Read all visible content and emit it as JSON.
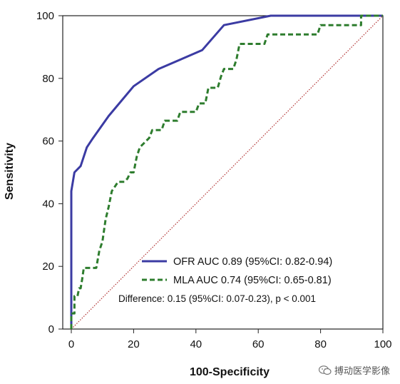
{
  "chart_data": {
    "type": "line",
    "xlabel": "100-Specificity",
    "ylabel": "Sensitivity",
    "xlim": [
      0,
      100
    ],
    "ylim": [
      0,
      100
    ],
    "xticks": [
      0,
      20,
      40,
      60,
      80,
      100
    ],
    "yticks": [
      0,
      20,
      40,
      60,
      80,
      100
    ],
    "grid": false,
    "legend_placement": "bottom-right",
    "series": [
      {
        "name": "OFR AUC 0.89 (95%CI: 0.82-0.94)",
        "color": "#3b3ba3",
        "style": "solid",
        "points": [
          [
            0,
            0
          ],
          [
            0,
            44
          ],
          [
            1,
            50
          ],
          [
            3,
            52
          ],
          [
            5,
            58
          ],
          [
            7,
            61
          ],
          [
            12,
            68
          ],
          [
            20,
            77.5
          ],
          [
            28,
            83
          ],
          [
            35,
            86
          ],
          [
            42,
            89
          ],
          [
            49,
            97
          ],
          [
            64,
            100
          ],
          [
            100,
            100
          ]
        ]
      },
      {
        "name": "MLA AUC 0.74 (95%CI: 0.65-0.81)",
        "color": "#2e7d2e",
        "style": "dashed",
        "points": [
          [
            0,
            0
          ],
          [
            0,
            5
          ],
          [
            1,
            5
          ],
          [
            1,
            10.5
          ],
          [
            2,
            10.5
          ],
          [
            2.5,
            13
          ],
          [
            3,
            13
          ],
          [
            3.5,
            16
          ],
          [
            4,
            19.5
          ],
          [
            8,
            19.5
          ],
          [
            9,
            25
          ],
          [
            10,
            28
          ],
          [
            11,
            35
          ],
          [
            12,
            39
          ],
          [
            13,
            44
          ],
          [
            14,
            45.5
          ],
          [
            15,
            47
          ],
          [
            17,
            47
          ],
          [
            18,
            48
          ],
          [
            19,
            50
          ],
          [
            20,
            50
          ],
          [
            21,
            55
          ],
          [
            22,
            58
          ],
          [
            23,
            59
          ],
          [
            24,
            60
          ],
          [
            25,
            61
          ],
          [
            26,
            63.5
          ],
          [
            29,
            63.5
          ],
          [
            30,
            66.5
          ],
          [
            34,
            66.5
          ],
          [
            35,
            69.3
          ],
          [
            40,
            69.3
          ],
          [
            41,
            72
          ],
          [
            43,
            72
          ],
          [
            44,
            77
          ],
          [
            47,
            77
          ],
          [
            48,
            80.5
          ],
          [
            49,
            83
          ],
          [
            52,
            83
          ],
          [
            53,
            86
          ],
          [
            54,
            91
          ],
          [
            62,
            91
          ],
          [
            63,
            94
          ],
          [
            79,
            94
          ],
          [
            80,
            97
          ],
          [
            93,
            97
          ],
          [
            93,
            100
          ],
          [
            100,
            100
          ]
        ]
      },
      {
        "name": "",
        "color": "#b03030",
        "style": "dotted",
        "points": [
          [
            0,
            0
          ],
          [
            100,
            100
          ]
        ]
      }
    ],
    "annotation": "Difference: 0.15 (95%CI: 0.07-0.23), p < 0.001"
  },
  "watermark": {
    "text": "搏动医学影像",
    "icon": "wechat-icon"
  }
}
